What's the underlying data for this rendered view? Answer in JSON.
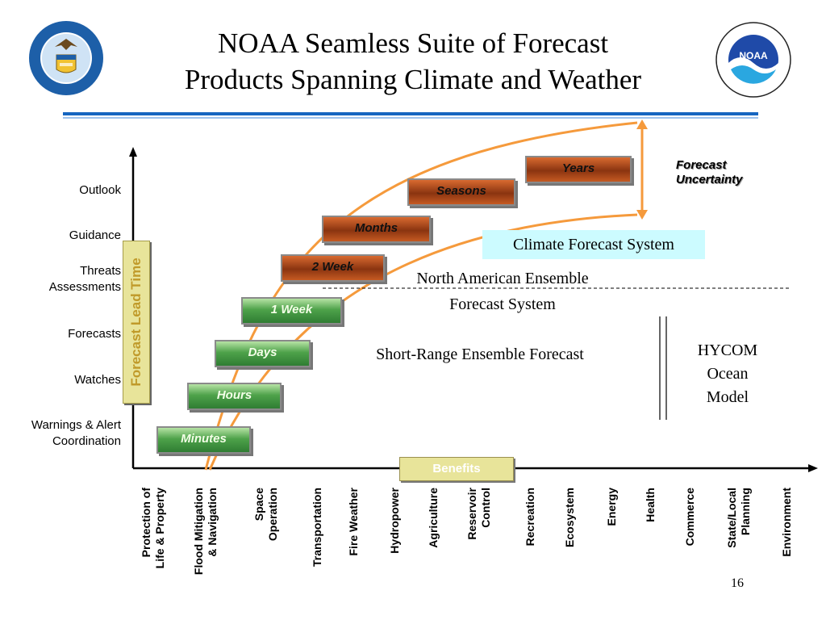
{
  "title_line1": "NOAA Seamless Suite of Forecast",
  "title_line2": "Products Spanning Climate and Weather",
  "y_axis_title": "Forecast Lead Time",
  "y_labels": [
    "Outlook",
    "Guidance",
    "Threats",
    "Assessments",
    "Forecasts",
    "Watches",
    "Warnings & Alert",
    "Coordination"
  ],
  "boxes": [
    "Minutes",
    "Hours",
    "Days",
    "1 Week",
    "2 Week",
    "Months",
    "Seasons",
    "Years"
  ],
  "climate_forecast_system": "Climate Forecast System",
  "north_american_ensemble_1": "North American Ensemble",
  "north_american_ensemble_2": "Forecast System",
  "short_range_ensemble": "Short-Range Ensemble Forecast",
  "hycom": [
    "HYCOM",
    "Ocean",
    "Model"
  ],
  "forecast_uncertainty": [
    "Forecast",
    "Uncertainty"
  ],
  "benefits": "Benefits",
  "x_labels": [
    [
      "Protection of",
      "Life & Property"
    ],
    [
      "Flood Mitigation",
      "& Navigation"
    ],
    [
      "Space",
      "Operation"
    ],
    [
      "Transportation"
    ],
    [
      "Fire Weather"
    ],
    [
      "Hydropower"
    ],
    [
      "Agriculture"
    ],
    [
      "Reservoir",
      "Control"
    ],
    [
      "Recreation"
    ],
    [
      "Ecosystem"
    ],
    [
      "Energy"
    ],
    [
      "Health"
    ],
    [
      "Commerce"
    ],
    [
      "State/Local",
      "Planning"
    ],
    [
      "Environment"
    ]
  ],
  "page_number": "16",
  "seal_ring_text": "DEPARTMENT OF COMMERCE",
  "seal_ring_text2": "UNITED STATES OF AMERICA",
  "noaa_logo_text": "NOAA",
  "noaa_ring_text": "NATIONAL OCEANIC AND ATMOSPHERIC ADMINISTRATION",
  "noaa_ring_text2": "U.S. DEPARTMENT OF COMMERCE",
  "colors": {
    "rule": "#1565c0",
    "curve": "#f59a3c",
    "green_box": "#4ea24a",
    "rust_box": "#8a3410",
    "cfs_bg": "#ccfbff"
  },
  "icons": [
    "commerce-seal-icon",
    "noaa-logo-icon"
  ]
}
